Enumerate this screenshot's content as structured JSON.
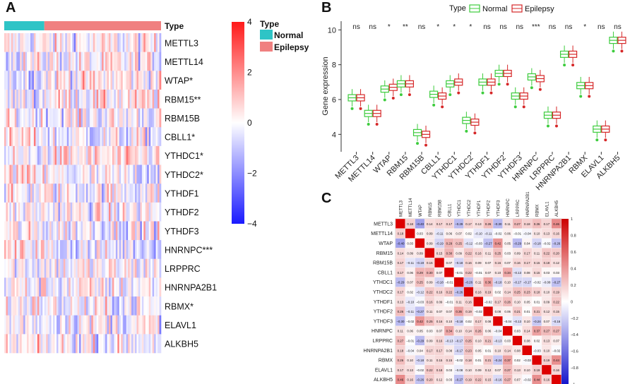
{
  "panel_labels": [
    "A",
    "B",
    "C"
  ],
  "chart_data": [
    {
      "type": "heatmap",
      "panel": "A",
      "annotation_title": "Type",
      "groups": [
        {
          "name": "Normal",
          "color": "#2ec4c6",
          "fraction": 0.255
        },
        {
          "name": "Epilepsy",
          "color": "#f08080",
          "fraction": 0.745
        }
      ],
      "legend_title": "Type",
      "rows": [
        "METTL3",
        "METTL14",
        "WTAP*",
        "RBM15**",
        "RBM15B",
        "CBLL1*",
        "YTHDC1*",
        "YTHDC2*",
        "YTHDF1",
        "YTHDF2",
        "YTHDF3",
        "HNRNPC***",
        "LRPPRC",
        "HNRNPA2B1",
        "RBMX*",
        "ELAVL1",
        "ALKBH5"
      ],
      "colorbar": {
        "min": -4,
        "max": 4,
        "ticks": [
          "4",
          "2",
          "0",
          "−2",
          "−4"
        ],
        "low_color": "#1a1aff",
        "mid_color": "#ffffff",
        "high_color": "#ff1a1a"
      }
    },
    {
      "type": "box",
      "panel": "B",
      "legend_title": "Type",
      "series": [
        {
          "name": "Normal",
          "color": "#3dcc3d"
        },
        {
          "name": "Epilepsy",
          "color": "#d62728"
        }
      ],
      "ylabel": "Gene expression",
      "ylim": [
        3,
        10.5
      ],
      "yticks": [
        "4",
        "6",
        "8",
        "10"
      ],
      "categories": [
        "METTL3",
        "METTL14",
        "WTAP",
        "RBM15",
        "RBM15B",
        "CBLL1",
        "YTHDC1",
        "YTHDC2",
        "YTHDF1",
        "YTHDF2",
        "YTHDF3",
        "HNRNPC",
        "LRPPRC",
        "HNRNPA2B1",
        "RBMX",
        "ELAVL1",
        "ALKBH5"
      ],
      "significance": [
        "ns",
        "ns",
        "*",
        "**",
        "ns",
        "*",
        "*",
        "*",
        "ns",
        "ns",
        "ns",
        "***",
        "ns",
        "ns",
        "*",
        "ns",
        "ns"
      ],
      "normal_median": [
        6.1,
        5.2,
        6.6,
        6.9,
        4.1,
        6.3,
        6.9,
        4.8,
        7.0,
        7.5,
        6.2,
        7.3,
        5.1,
        8.6,
        6.8,
        4.3,
        9.4
      ],
      "epilepsy_median": [
        6.1,
        5.2,
        6.7,
        6.9,
        4.0,
        6.2,
        7.0,
        4.7,
        7.0,
        7.5,
        6.2,
        7.2,
        5.1,
        8.6,
        6.8,
        4.3,
        9.4
      ]
    },
    {
      "type": "heatmap",
      "panel": "C",
      "labels": [
        "METTL3",
        "METTL14",
        "WTAP",
        "RBM15",
        "RBM15B",
        "CBLL1",
        "YTHDC1",
        "YTHDC2",
        "YTHDF1",
        "YTHDF2",
        "YTHDF3",
        "HNRNPC",
        "LRPPRC",
        "HNRNPA2B1",
        "RBMX",
        "ELAVL1",
        "ALKBH5"
      ],
      "upper_triangle": [
        [
          0.18,
          -0.4,
          0.14,
          0.17,
          0.17,
          -0.29,
          0.17,
          0.13,
          0.26,
          -0.3,
          0.11,
          0.27,
          0.18,
          0.26,
          0.17,
          0.46
        ],
        [
          0.03,
          0.09,
          -0.11,
          0.06,
          0.07,
          0.02,
          -0.1,
          -0.11,
          -0.02,
          0.06,
          -0.01,
          -0.04,
          0.1,
          0.13,
          0.16
        ],
        [
          0.09,
          -0.19,
          0.29,
          0.25,
          -0.12,
          -0.03,
          -0.27,
          0.42,
          0.05,
          -0.29,
          0.04,
          -0.18,
          -0.02,
          -0.26
        ],
        [
          0.15,
          0.3,
          0.09,
          0.22,
          0.16,
          0.11,
          0.25,
          0.03,
          0.09,
          0.17,
          0.11,
          0.22,
          0.2
        ],
        [
          0.07,
          -0.18,
          0.16,
          0.09,
          0.07,
          0.16,
          0.07,
          0.16,
          0.17,
          0.15,
          0.18,
          0.12
        ],
        [
          -0.01,
          0.22,
          -0.01,
          0.07,
          0.1,
          0.34,
          -0.13,
          0.08,
          0.15,
          0.03,
          0.03
        ],
        [
          -0.26,
          0.11,
          0.36,
          -0.18,
          0.1,
          -0.17,
          -0.17,
          -0.02,
          -0.08,
          -0.27
        ],
        [
          0.16,
          0.19,
          0.02,
          0.14,
          0.25,
          0.23,
          0.18,
          0.1,
          0.19
        ],
        [
          -0.02,
          0.17,
          0.26,
          0.1,
          0.05,
          0.01,
          0.09,
          0.22
        ],
        [
          0.08,
          0.06,
          0.21,
          0.01,
          0.21,
          0.12,
          0.15
        ],
        [
          -0.04,
          -0.13,
          0.1,
          -0.24,
          0.07,
          -0.16
        ],
        [
          0.03,
          0.14,
          0.37,
          0.27,
          0.27
        ],
        [
          0.08,
          0.02,
          0.13,
          0.07
        ],
        [
          -0.03,
          0.1,
          -0.02
        ],
        [
          0.19,
          0.44
        ],
        [
          0.16
        ]
      ],
      "colorbar": {
        "min": -1,
        "max": 1,
        "ticks": [
          "1",
          "0.8",
          "0.6",
          "0.4",
          "0.2",
          "0",
          "−0.2",
          "−0.4",
          "−0.6",
          "−0.8",
          "−1"
        ]
      }
    }
  ]
}
